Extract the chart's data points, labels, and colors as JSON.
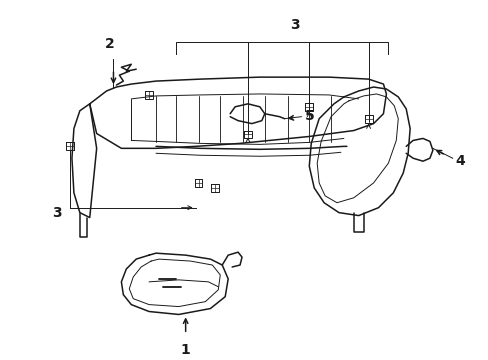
{
  "background_color": "#ffffff",
  "line_color": "#1a1a1a",
  "lw": 1.1,
  "tlw": 0.7,
  "fig_width": 4.89,
  "fig_height": 3.6,
  "dpi": 100,
  "label_fontsize": 10
}
